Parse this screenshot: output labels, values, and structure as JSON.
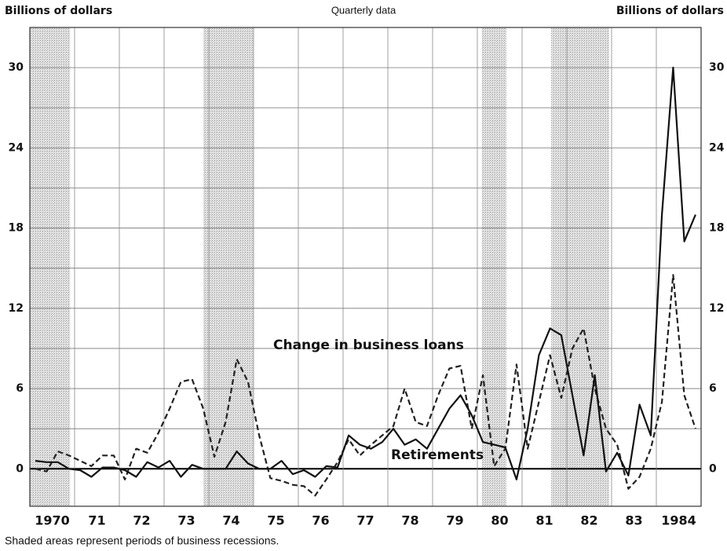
{
  "chart_data": {
    "type": "line",
    "title": "Quarterly data",
    "y_axis_label": "Billions of dollars",
    "y2_axis_label": "Billions of dollars",
    "footnote": "Shaded areas represent periods of business recessions.",
    "x": [
      1970.125,
      1970.375,
      1970.625,
      1970.875,
      1971.125,
      1971.375,
      1971.625,
      1971.875,
      1972.125,
      1972.375,
      1972.625,
      1972.875,
      1973.125,
      1973.375,
      1973.625,
      1973.875,
      1974.125,
      1974.375,
      1974.625,
      1974.875,
      1975.125,
      1975.375,
      1975.625,
      1975.875,
      1976.125,
      1976.375,
      1976.625,
      1976.875,
      1977.125,
      1977.375,
      1977.625,
      1977.875,
      1978.125,
      1978.375,
      1978.625,
      1978.875,
      1979.125,
      1979.375,
      1979.625,
      1979.875,
      1980.125,
      1980.375,
      1980.625,
      1980.875,
      1981.125,
      1981.375,
      1981.625,
      1981.875,
      1982.125,
      1982.375,
      1982.625,
      1982.875,
      1983.125,
      1983.375,
      1983.625,
      1983.875,
      1984.125,
      1984.375,
      1984.625,
      1984.875
    ],
    "series": [
      {
        "name": "Change in business loans",
        "color": "#222222",
        "dash": true,
        "values": [
          0,
          -0.2,
          1.3,
          1.0,
          0.6,
          0.2,
          1.0,
          1.0,
          -0.8,
          1.5,
          1.2,
          2.7,
          4.5,
          6.5,
          6.7,
          4.5,
          0.9,
          3.5,
          8.2,
          6.5,
          2.5,
          -0.7,
          -0.9,
          -1.2,
          -1.3,
          -2.0,
          -0.8,
          0.5,
          2.2,
          1.0,
          1.8,
          2.5,
          3.2,
          6.0,
          3.5,
          3.2,
          5.5,
          7.5,
          7.7,
          3.0,
          7.0,
          0.2,
          1.5,
          7.8,
          1.5,
          5.0,
          8.5,
          5.3,
          9.0,
          10.5,
          6.0,
          3.0,
          1.8,
          -1.5,
          -0.6,
          1.5,
          5.0,
          14.5,
          5.5,
          3.0
        ]
      },
      {
        "name": "Retirements",
        "color": "#111111",
        "dash": false,
        "values": [
          0.6,
          0.5,
          0.5,
          0,
          -0.1,
          -0.6,
          0.1,
          0.1,
          -0.1,
          -0.6,
          0.5,
          0.1,
          0.6,
          -0.6,
          0.3,
          0,
          0,
          0,
          1.3,
          0.4,
          0,
          0,
          0.6,
          -0.4,
          -0.1,
          -0.6,
          0.2,
          0.1,
          2.5,
          1.8,
          1.5,
          2.0,
          3.0,
          1.8,
          2.2,
          1.5,
          3.0,
          4.5,
          5.5,
          4.0,
          2.0,
          1.8,
          1.6,
          -0.8,
          3.0,
          8.5,
          10.5,
          10.0,
          5.5,
          1.0,
          7.0,
          -0.2,
          1.2,
          -0.5,
          4.8,
          2.5,
          19,
          30,
          17,
          19
        ]
      }
    ],
    "recessions": [
      [
        1970.0,
        1970.9
      ],
      [
        1973.875,
        1975.0
      ],
      [
        1980.1,
        1980.65
      ],
      [
        1981.65,
        1982.95
      ]
    ],
    "xlim": [
      1970,
      1985
    ],
    "xticks": [
      {
        "value": 1970,
        "label": "1970"
      },
      {
        "value": 1971,
        "label": "71"
      },
      {
        "value": 1972,
        "label": "72"
      },
      {
        "value": 1973,
        "label": "73"
      },
      {
        "value": 1974,
        "label": "74"
      },
      {
        "value": 1975,
        "label": "75"
      },
      {
        "value": 1976,
        "label": "76"
      },
      {
        "value": 1977,
        "label": "77"
      },
      {
        "value": 1978,
        "label": "78"
      },
      {
        "value": 1979,
        "label": "79"
      },
      {
        "value": 1980,
        "label": "80"
      },
      {
        "value": 1981,
        "label": "81"
      },
      {
        "value": 1982,
        "label": "82"
      },
      {
        "value": 1983,
        "label": "83"
      },
      {
        "value": 1984,
        "label": "1984"
      }
    ],
    "ylim": [
      -2.8,
      33
    ],
    "yticks": [
      0,
      6,
      12,
      18,
      24,
      30
    ],
    "y_minor_ticks": [
      3,
      9,
      15,
      21,
      27
    ],
    "grid": true
  }
}
